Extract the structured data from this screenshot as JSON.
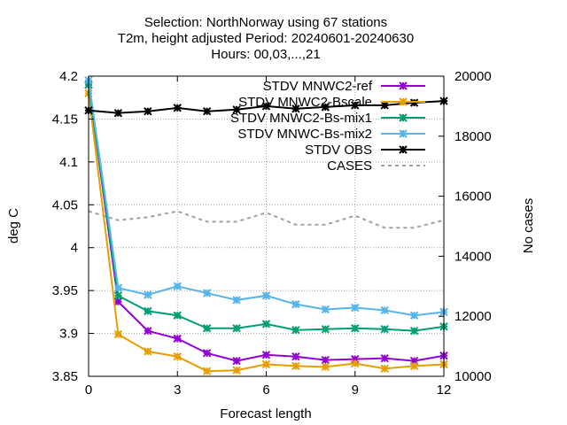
{
  "chart_data": {
    "type": "line",
    "title": [
      "Selection: NorthNorway using    67 stations",
      "T2m, height adjusted   Period: 20240601-20240630",
      "Hours: 00,03,...,21"
    ],
    "xlabel": "Forecast length",
    "ylabel": "deg C",
    "y2label": "No cases",
    "xlim": [
      0,
      12
    ],
    "ylim": [
      3.85,
      4.2
    ],
    "y2lim": [
      10000,
      20000
    ],
    "xticks": [
      0,
      3,
      6,
      9,
      12
    ],
    "yticks": [
      3.85,
      3.9,
      3.95,
      4.0,
      4.05,
      4.1,
      4.15,
      4.2
    ],
    "yticklabels": [
      "3.85",
      "3.9",
      "3.95",
      "4",
      "4.05",
      "4.1",
      "4.15",
      "4.2"
    ],
    "y2ticks": [
      10000,
      12000,
      14000,
      16000,
      18000,
      20000
    ],
    "grid": true,
    "legend_position": "top-right",
    "x": [
      0,
      1,
      2,
      3,
      4,
      5,
      6,
      7,
      8,
      9,
      10,
      11,
      12
    ],
    "series": [
      {
        "name": "STDV MNWC2-ref",
        "color": "#9400d3",
        "axis": "y1",
        "style": "solid-marker",
        "values": [
          4.19,
          3.937,
          3.903,
          3.894,
          3.877,
          3.868,
          3.875,
          3.873,
          3.869,
          3.87,
          3.871,
          3.868,
          3.874
        ]
      },
      {
        "name": "STDV MNWC2-Bscale",
        "color": "#e69f00",
        "axis": "y1",
        "style": "solid-marker",
        "values": [
          4.18,
          3.899,
          3.879,
          3.873,
          3.856,
          3.857,
          3.864,
          3.862,
          3.861,
          3.865,
          3.859,
          3.862,
          3.864
        ]
      },
      {
        "name": "STDV MNWC2-Bs-mix1",
        "color": "#009e73",
        "axis": "y1",
        "style": "solid-marker",
        "values": [
          4.19,
          3.944,
          3.926,
          3.921,
          3.906,
          3.906,
          3.911,
          3.904,
          3.905,
          3.906,
          3.905,
          3.903,
          3.908
        ]
      },
      {
        "name": "STDV MNWC-Bs-mix2",
        "color": "#56b4e9",
        "axis": "y1",
        "style": "solid-marker",
        "values": [
          4.195,
          3.953,
          3.945,
          3.955,
          3.947,
          3.939,
          3.944,
          3.934,
          3.928,
          3.93,
          3.927,
          3.921,
          3.925
        ]
      },
      {
        "name": "STDV OBS",
        "color": "#000000",
        "axis": "y1",
        "style": "solid-marker",
        "values": [
          4.16,
          4.157,
          4.159,
          4.163,
          4.159,
          4.161,
          4.165,
          4.162,
          4.164,
          4.166,
          4.166,
          4.169,
          4.171
        ]
      },
      {
        "name": "CASES",
        "color": "#a0a0a0",
        "axis": "y2",
        "style": "dashed",
        "values": [
          15500,
          15200,
          15300,
          15500,
          15150,
          15150,
          15450,
          15050,
          15050,
          15350,
          14950,
          14950,
          15200
        ]
      }
    ]
  }
}
